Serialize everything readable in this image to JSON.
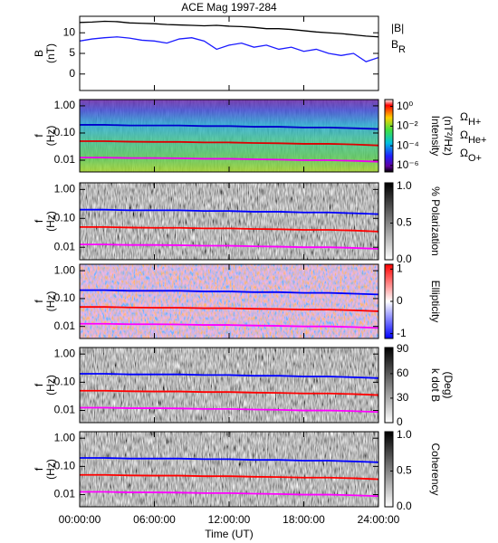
{
  "chart_data": [
    {
      "type": "line",
      "title": "ACE Mag 1997-284",
      "ylabel": [
        "B",
        "(nT)"
      ],
      "xlim": [
        0,
        24
      ],
      "ylim": [
        -4,
        14
      ],
      "yticks": [
        0,
        5,
        10
      ],
      "x": [
        0,
        1,
        2,
        3,
        4,
        5,
        6,
        7,
        8,
        9,
        10,
        11,
        12,
        13,
        14,
        15,
        16,
        17,
        18,
        19,
        20,
        21,
        22,
        23,
        24
      ],
      "series": [
        {
          "name": "|B|",
          "color": "#000000",
          "values": [
            12.5,
            12.6,
            12.8,
            12.7,
            12.4,
            12.3,
            12.2,
            12.0,
            11.9,
            11.8,
            11.7,
            11.8,
            11.6,
            11.5,
            11.3,
            11.0,
            11.0,
            10.8,
            10.5,
            10.2,
            10.0,
            9.8,
            9.5,
            9.2,
            9.0
          ]
        },
        {
          "name": "BR",
          "color": "#1a1aff",
          "values": [
            8.0,
            8.5,
            8.8,
            9.0,
            8.7,
            8.2,
            8.0,
            7.5,
            8.5,
            8.8,
            8.0,
            6.0,
            7.0,
            7.5,
            6.5,
            7.0,
            6.0,
            6.5,
            5.5,
            6.0,
            5.0,
            4.5,
            5.0,
            3.0,
            4.0
          ]
        }
      ]
    },
    {
      "type": "line",
      "ylabel": [
        "f",
        "(Hz)"
      ],
      "ylog": true,
      "xlim": [
        0,
        24
      ],
      "ylim": [
        0.0037,
        1.7
      ],
      "yticks": [
        {
          "value": 1,
          "label": "1.00"
        },
        {
          "value": 0.1,
          "label": "0.10"
        },
        {
          "value": 0.01,
          "label": "0.01"
        }
      ],
      "colorbar": {
        "label": [
          "Intensity",
          "(nT²/Hz)"
        ],
        "log": true,
        "lim": [
          2.2e-07,
          5
        ],
        "ticks": [
          {
            "value": 1,
            "label": "10⁰"
          },
          {
            "value": 0.01,
            "label": "10⁻²"
          },
          {
            "value": 0.0001,
            "label": "10⁻⁴"
          },
          {
            "value": 1e-06,
            "label": "10⁻⁶"
          }
        ]
      },
      "x": [
        0,
        2,
        4,
        6,
        8,
        10,
        12,
        14,
        16,
        18,
        20,
        22,
        24
      ],
      "series": [
        {
          "name": "ΩH+",
          "color": "#0000cc",
          "values": [
            0.2,
            0.2,
            0.19,
            0.19,
            0.19,
            0.18,
            0.18,
            0.17,
            0.17,
            0.16,
            0.16,
            0.15,
            0.14
          ]
        },
        {
          "name": "ΩHe+",
          "color": "#dd0000",
          "values": [
            0.05,
            0.05,
            0.048,
            0.047,
            0.047,
            0.045,
            0.045,
            0.043,
            0.042,
            0.04,
            0.04,
            0.038,
            0.035
          ]
        },
        {
          "name": "ΩO+",
          "color": "#ee00ee",
          "values": [
            0.0125,
            0.0125,
            0.012,
            0.012,
            0.0118,
            0.0113,
            0.0113,
            0.0108,
            0.0105,
            0.01,
            0.01,
            0.0095,
            0.0088
          ]
        }
      ]
    },
    {
      "type": "line",
      "ylabel": [
        "f",
        "(Hz)"
      ],
      "ylog": true,
      "xlim": [
        0,
        24
      ],
      "ylim": [
        0.0037,
        1.7
      ],
      "yticks": [
        {
          "value": 1,
          "label": "1.00"
        },
        {
          "value": 0.1,
          "label": "0.10"
        },
        {
          "value": 0.01,
          "label": "0.01"
        }
      ],
      "colorbar": {
        "label": [
          "% Polarization"
        ],
        "lim": [
          0,
          1.05
        ],
        "ticks": [
          {
            "value": 0,
            "label": "0.0"
          },
          {
            "value": 0.5,
            "label": "0.5"
          },
          {
            "value": 1,
            "label": "1.0"
          }
        ]
      },
      "x": [
        0,
        2,
        4,
        6,
        8,
        10,
        12,
        14,
        16,
        18,
        20,
        22,
        24
      ],
      "series": [
        {
          "color": "#0000ff",
          "values": [
            0.2,
            0.2,
            0.19,
            0.19,
            0.19,
            0.18,
            0.18,
            0.17,
            0.17,
            0.16,
            0.16,
            0.15,
            0.14
          ]
        },
        {
          "color": "#ff0000",
          "values": [
            0.05,
            0.05,
            0.048,
            0.047,
            0.047,
            0.045,
            0.045,
            0.043,
            0.042,
            0.04,
            0.04,
            0.038,
            0.035
          ]
        },
        {
          "color": "#ff00ff",
          "values": [
            0.0125,
            0.0125,
            0.012,
            0.012,
            0.0118,
            0.0113,
            0.0113,
            0.0108,
            0.0105,
            0.01,
            0.01,
            0.0095,
            0.0088
          ]
        }
      ]
    },
    {
      "type": "line",
      "ylabel": [
        "f",
        "(Hz)"
      ],
      "ylog": true,
      "xlim": [
        0,
        24
      ],
      "ylim": [
        0.0037,
        1.7
      ],
      "yticks": [
        {
          "value": 1,
          "label": "1.00"
        },
        {
          "value": 0.1,
          "label": "0.10"
        },
        {
          "value": 0.01,
          "label": "0.01"
        }
      ],
      "colorbar": {
        "label": [
          "Ellipticity"
        ],
        "lim": [
          -1.15,
          1.15
        ],
        "ticks": [
          1,
          0,
          -1
        ]
      },
      "x": [
        0,
        2,
        4,
        6,
        8,
        10,
        12,
        14,
        16,
        18,
        20,
        22,
        24
      ],
      "series": [
        {
          "color": "#0000ff",
          "values": [
            0.2,
            0.2,
            0.19,
            0.19,
            0.19,
            0.18,
            0.18,
            0.17,
            0.17,
            0.16,
            0.16,
            0.15,
            0.14
          ]
        },
        {
          "color": "#ff0000",
          "values": [
            0.05,
            0.05,
            0.048,
            0.047,
            0.047,
            0.045,
            0.045,
            0.043,
            0.042,
            0.04,
            0.04,
            0.038,
            0.035
          ]
        },
        {
          "color": "#ff00ff",
          "values": [
            0.0125,
            0.0125,
            0.012,
            0.012,
            0.0118,
            0.0113,
            0.0113,
            0.0108,
            0.0105,
            0.01,
            0.01,
            0.0095,
            0.0088
          ]
        }
      ]
    },
    {
      "type": "line",
      "ylabel": [
        "f",
        "(Hz)"
      ],
      "ylog": true,
      "xlim": [
        0,
        24
      ],
      "ylim": [
        0.0037,
        1.7
      ],
      "yticks": [
        {
          "value": 1,
          "label": "1.00"
        },
        {
          "value": 0.1,
          "label": "0.10"
        },
        {
          "value": 0.01,
          "label": "0.01"
        }
      ],
      "colorbar": {
        "label": [
          "k dot B",
          "(Deg)"
        ],
        "lim": [
          0,
          92
        ],
        "ticks": [
          0,
          30,
          60,
          90
        ]
      },
      "x": [
        0,
        2,
        4,
        6,
        8,
        10,
        12,
        14,
        16,
        18,
        20,
        22,
        24
      ],
      "series": [
        {
          "color": "#0000ff",
          "values": [
            0.2,
            0.2,
            0.19,
            0.19,
            0.19,
            0.18,
            0.18,
            0.17,
            0.17,
            0.16,
            0.16,
            0.15,
            0.14
          ]
        },
        {
          "color": "#ff0000",
          "values": [
            0.05,
            0.05,
            0.048,
            0.047,
            0.047,
            0.045,
            0.045,
            0.043,
            0.042,
            0.04,
            0.04,
            0.038,
            0.035
          ]
        },
        {
          "color": "#ff00ff",
          "values": [
            0.0125,
            0.0125,
            0.012,
            0.012,
            0.0118,
            0.0113,
            0.0113,
            0.0108,
            0.0105,
            0.01,
            0.01,
            0.0095,
            0.0088
          ]
        }
      ]
    },
    {
      "type": "line",
      "ylabel": [
        "f",
        "(Hz)"
      ],
      "ylog": true,
      "xlabel": "Time (UT)",
      "xlim": [
        0,
        24
      ],
      "ylim": [
        0.0037,
        1.7
      ],
      "xticks": [
        {
          "value": 0,
          "label": "00:00:00"
        },
        {
          "value": 6,
          "label": "06:00:00"
        },
        {
          "value": 12,
          "label": "12:00:00"
        },
        {
          "value": 18,
          "label": "18:00:00"
        },
        {
          "value": 24,
          "label": "24:00:00"
        }
      ],
      "yticks": [
        {
          "value": 1,
          "label": "1.00"
        },
        {
          "value": 0.1,
          "label": "0.10"
        },
        {
          "value": 0.01,
          "label": "0.01"
        }
      ],
      "colorbar": {
        "label": [
          "Coherency"
        ],
        "lim": [
          0,
          1.05
        ],
        "ticks": [
          {
            "value": 0,
            "label": "0.0"
          },
          {
            "value": 0.5,
            "label": "0.5"
          },
          {
            "value": 1,
            "label": "1.0"
          }
        ]
      },
      "x": [
        0,
        2,
        4,
        6,
        8,
        10,
        12,
        14,
        16,
        18,
        20,
        22,
        24
      ],
      "series": [
        {
          "color": "#0000ff",
          "values": [
            0.2,
            0.2,
            0.19,
            0.19,
            0.19,
            0.18,
            0.18,
            0.17,
            0.17,
            0.16,
            0.16,
            0.15,
            0.14
          ]
        },
        {
          "color": "#ff0000",
          "values": [
            0.05,
            0.05,
            0.048,
            0.047,
            0.047,
            0.045,
            0.045,
            0.043,
            0.042,
            0.04,
            0.04,
            0.038,
            0.035
          ]
        },
        {
          "color": "#ff00ff",
          "values": [
            0.0125,
            0.0125,
            0.012,
            0.012,
            0.0118,
            0.0113,
            0.0113,
            0.0108,
            0.0105,
            0.01,
            0.01,
            0.0095,
            0.0088
          ]
        }
      ]
    }
  ]
}
